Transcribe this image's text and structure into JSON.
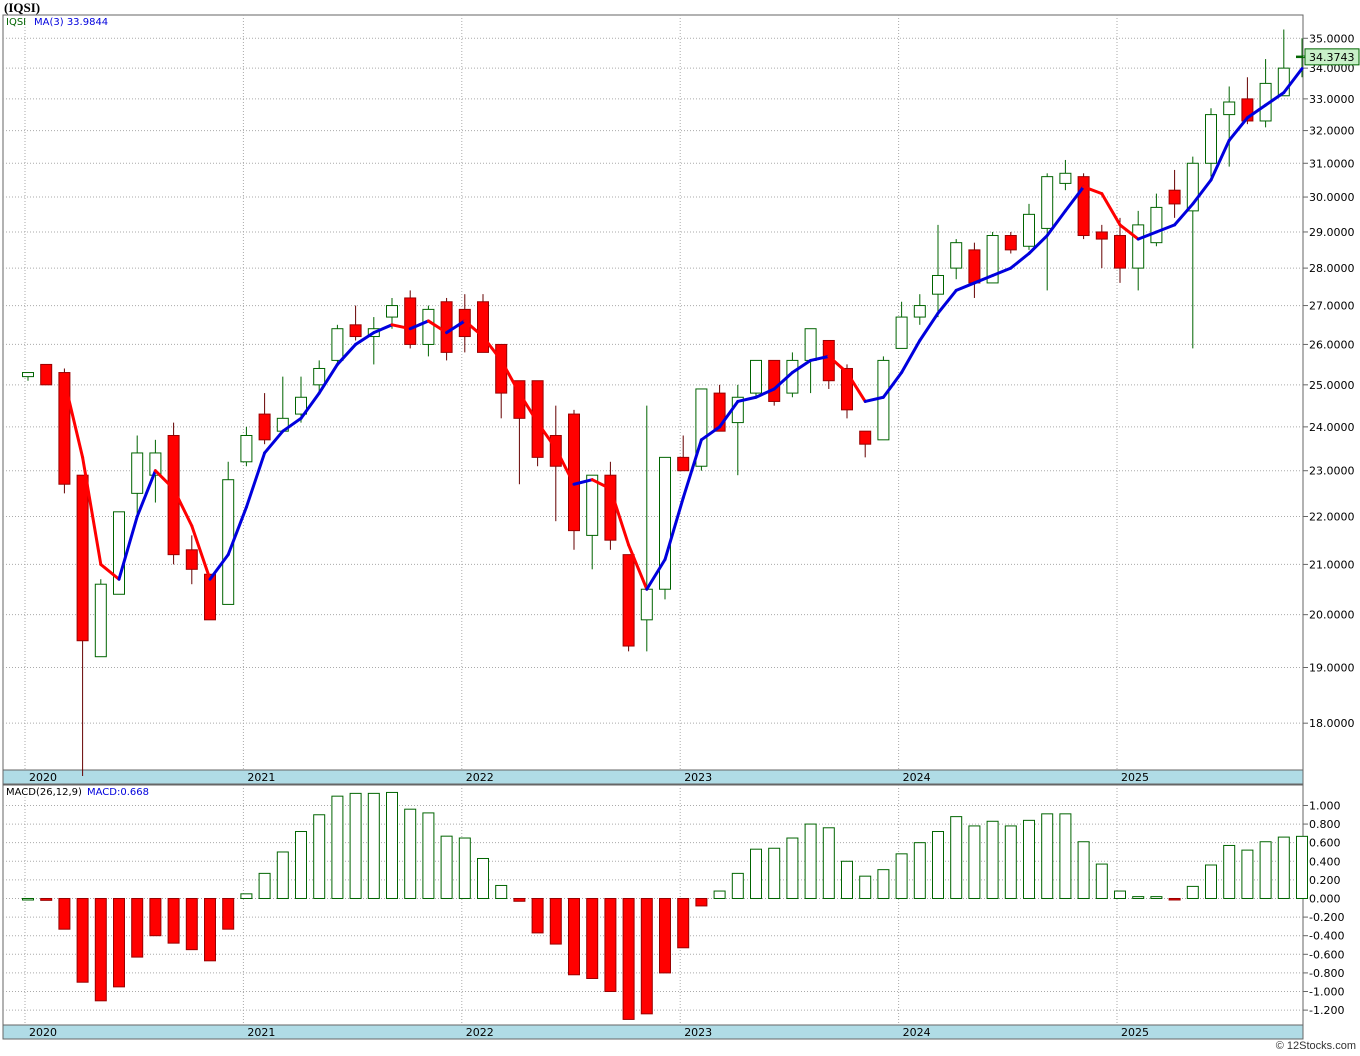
{
  "title": "(IQSI)",
  "footer": "© 12Stocks.com",
  "colors": {
    "up_candle": "#006400",
    "down_candle": "#ff0000",
    "ma_up": "#0000dd",
    "ma_down": "#ff0000",
    "macd_pos": "#006400",
    "macd_neg": "#ff0000",
    "axis_bar": "#b0dce6",
    "price_tag": "#c8f0c8",
    "grid": "#aaaaaa"
  },
  "chart_data": [
    {
      "type": "candlestick",
      "interval": "monthly",
      "legend": {
        "ticker": "IQSI",
        "ma_label": "MA(3)",
        "ma_value": "33.9844"
      },
      "last_price": "34.3743",
      "ylim": [
        17.2,
        35.8
      ],
      "y_scale": "log",
      "y_ticks": [
        "18.0000",
        "19.0000",
        "20.0000",
        "21.0000",
        "22.0000",
        "23.0000",
        "24.0000",
        "25.0000",
        "26.0000",
        "27.0000",
        "28.0000",
        "29.0000",
        "30.0000",
        "31.0000",
        "32.0000",
        "33.0000",
        "34.0000",
        "35.0000"
      ],
      "x_year_labels": [
        "2020",
        "2021",
        "2022",
        "2023",
        "2024",
        "2025"
      ],
      "ohlc": [
        [
          25.2,
          25.3,
          25.1,
          25.3
        ],
        [
          25.5,
          25.5,
          25.0,
          25.0
        ],
        [
          25.3,
          25.4,
          22.5,
          22.7
        ],
        [
          22.9,
          22.9,
          17.1,
          19.5
        ],
        [
          19.2,
          20.7,
          19.2,
          20.6
        ],
        [
          20.4,
          22.1,
          20.4,
          22.1
        ],
        [
          22.5,
          23.8,
          22.0,
          23.4
        ],
        [
          22.9,
          23.7,
          22.3,
          23.4
        ],
        [
          23.8,
          24.1,
          21.0,
          21.2
        ],
        [
          21.3,
          21.6,
          20.6,
          20.9
        ],
        [
          20.8,
          20.8,
          19.9,
          19.9
        ],
        [
          20.2,
          23.2,
          20.2,
          22.8
        ],
        [
          23.2,
          24.0,
          23.1,
          23.8
        ],
        [
          24.3,
          24.8,
          23.6,
          23.7
        ],
        [
          23.9,
          25.2,
          23.9,
          24.2
        ],
        [
          24.3,
          25.2,
          24.1,
          24.7
        ],
        [
          25.0,
          25.6,
          24.8,
          25.4
        ],
        [
          25.6,
          26.5,
          25.5,
          26.4
        ],
        [
          26.5,
          27.0,
          26.1,
          26.2
        ],
        [
          26.2,
          26.7,
          25.5,
          26.4
        ],
        [
          26.7,
          27.2,
          26.4,
          27.0
        ],
        [
          27.2,
          27.4,
          25.9,
          26.0
        ],
        [
          26.0,
          27.0,
          25.7,
          26.9
        ],
        [
          27.1,
          27.2,
          25.6,
          25.8
        ],
        [
          26.9,
          27.3,
          25.8,
          26.2
        ],
        [
          27.1,
          27.3,
          25.8,
          25.8
        ],
        [
          26.0,
          26.0,
          24.2,
          24.8
        ],
        [
          25.1,
          25.1,
          22.7,
          24.2
        ],
        [
          25.1,
          25.1,
          23.1,
          23.3
        ],
        [
          23.8,
          24.5,
          21.9,
          23.1
        ],
        [
          24.3,
          24.4,
          21.3,
          21.7
        ],
        [
          21.6,
          22.9,
          20.9,
          22.9
        ],
        [
          22.9,
          23.2,
          21.3,
          21.5
        ],
        [
          21.2,
          21.2,
          19.3,
          19.4
        ],
        [
          19.9,
          24.5,
          19.3,
          20.5
        ],
        [
          20.5,
          23.3,
          20.3,
          23.3
        ],
        [
          23.3,
          23.8,
          23.0,
          23.0
        ],
        [
          23.1,
          24.9,
          23.0,
          24.9
        ],
        [
          24.8,
          25.0,
          23.9,
          23.9
        ],
        [
          24.1,
          25.0,
          22.9,
          24.7
        ],
        [
          24.8,
          25.6,
          24.7,
          25.6
        ],
        [
          25.6,
          25.6,
          24.5,
          24.6
        ],
        [
          24.8,
          25.8,
          24.7,
          25.6
        ],
        [
          25.6,
          26.4,
          24.8,
          26.4
        ],
        [
          26.1,
          26.1,
          24.9,
          25.1
        ],
        [
          25.4,
          25.5,
          24.2,
          24.4
        ],
        [
          23.9,
          23.9,
          23.3,
          23.6
        ],
        [
          23.7,
          25.7,
          23.7,
          25.6
        ],
        [
          25.9,
          27.1,
          25.9,
          26.7
        ],
        [
          26.7,
          27.3,
          26.5,
          27.0
        ],
        [
          27.3,
          29.2,
          26.7,
          27.8
        ],
        [
          28.0,
          28.8,
          27.7,
          28.7
        ],
        [
          28.5,
          28.7,
          27.2,
          27.6
        ],
        [
          27.6,
          29.0,
          27.6,
          28.9
        ],
        [
          28.9,
          29.0,
          28.4,
          28.5
        ],
        [
          28.6,
          29.8,
          28.5,
          29.5
        ],
        [
          29.1,
          30.7,
          27.4,
          30.6
        ],
        [
          30.4,
          31.1,
          30.2,
          30.7
        ],
        [
          30.6,
          30.7,
          28.8,
          28.9
        ],
        [
          29.0,
          29.2,
          28.0,
          28.8
        ],
        [
          28.9,
          29.4,
          27.6,
          28.0
        ],
        [
          28.0,
          29.6,
          27.4,
          29.2
        ],
        [
          28.7,
          30.1,
          28.6,
          29.7
        ],
        [
          30.2,
          30.8,
          29.4,
          29.8
        ],
        [
          29.6,
          31.2,
          25.9,
          31.0
        ],
        [
          31.0,
          32.7,
          30.6,
          32.5
        ],
        [
          32.5,
          33.4,
          30.9,
          32.9
        ],
        [
          33.0,
          33.7,
          32.2,
          32.3
        ],
        [
          32.3,
          34.3,
          32.1,
          33.5
        ],
        [
          33.1,
          35.3,
          33.1,
          34.0
        ],
        [
          34.4,
          35.0,
          33.7,
          34.4
        ]
      ],
      "ma3": [
        null,
        null,
        25.1,
        23.3,
        21.0,
        20.7,
        22.0,
        23.0,
        22.6,
        21.8,
        20.7,
        21.2,
        22.2,
        23.4,
        23.9,
        24.2,
        24.8,
        25.5,
        26.0,
        26.3,
        26.5,
        26.4,
        26.6,
        26.3,
        26.6,
        26.2,
        25.6,
        24.8,
        24.1,
        23.5,
        22.7,
        22.8,
        22.6,
        21.4,
        20.5,
        21.1,
        22.4,
        23.7,
        24.0,
        24.6,
        24.7,
        24.9,
        25.3,
        25.6,
        25.7,
        25.3,
        24.6,
        24.7,
        25.3,
        26.1,
        26.8,
        27.4,
        27.6,
        27.8,
        28.0,
        28.4,
        28.9,
        29.6,
        30.3,
        30.1,
        29.2,
        28.8,
        29.0,
        29.2,
        29.8,
        30.5,
        31.7,
        32.4,
        32.8,
        33.2,
        33.9844
      ],
      "macd": {
        "label": "MACD(26,12,9)",
        "value_label": "MACD:0.668",
        "ylim": [
          -1.36,
          1.22
        ],
        "y_ticks": [
          "1.000",
          "0.800",
          "0.600",
          "0.400",
          "0.200",
          "0.000",
          "-0.200",
          "-0.400",
          "-0.600",
          "-0.800",
          "-1.000",
          "-1.200"
        ],
        "values": [
          0.0,
          -0.02,
          -0.33,
          -0.9,
          -1.1,
          -0.95,
          -0.63,
          -0.4,
          -0.48,
          -0.55,
          -0.67,
          -0.33,
          0.05,
          0.27,
          0.5,
          0.72,
          0.9,
          1.1,
          1.13,
          1.13,
          1.14,
          0.96,
          0.92,
          0.67,
          0.65,
          0.43,
          0.14,
          -0.03,
          -0.37,
          -0.49,
          -0.82,
          -0.86,
          -1.0,
          -1.3,
          -1.24,
          -0.8,
          -0.53,
          -0.08,
          0.08,
          0.27,
          0.53,
          0.54,
          0.65,
          0.8,
          0.76,
          0.4,
          0.24,
          0.31,
          0.48,
          0.6,
          0.72,
          0.88,
          0.78,
          0.83,
          0.78,
          0.84,
          0.91,
          0.91,
          0.61,
          0.37,
          0.08,
          0.02,
          0.02,
          -0.01,
          0.13,
          0.36,
          0.57,
          0.52,
          0.61,
          0.66,
          0.668
        ]
      }
    }
  ]
}
